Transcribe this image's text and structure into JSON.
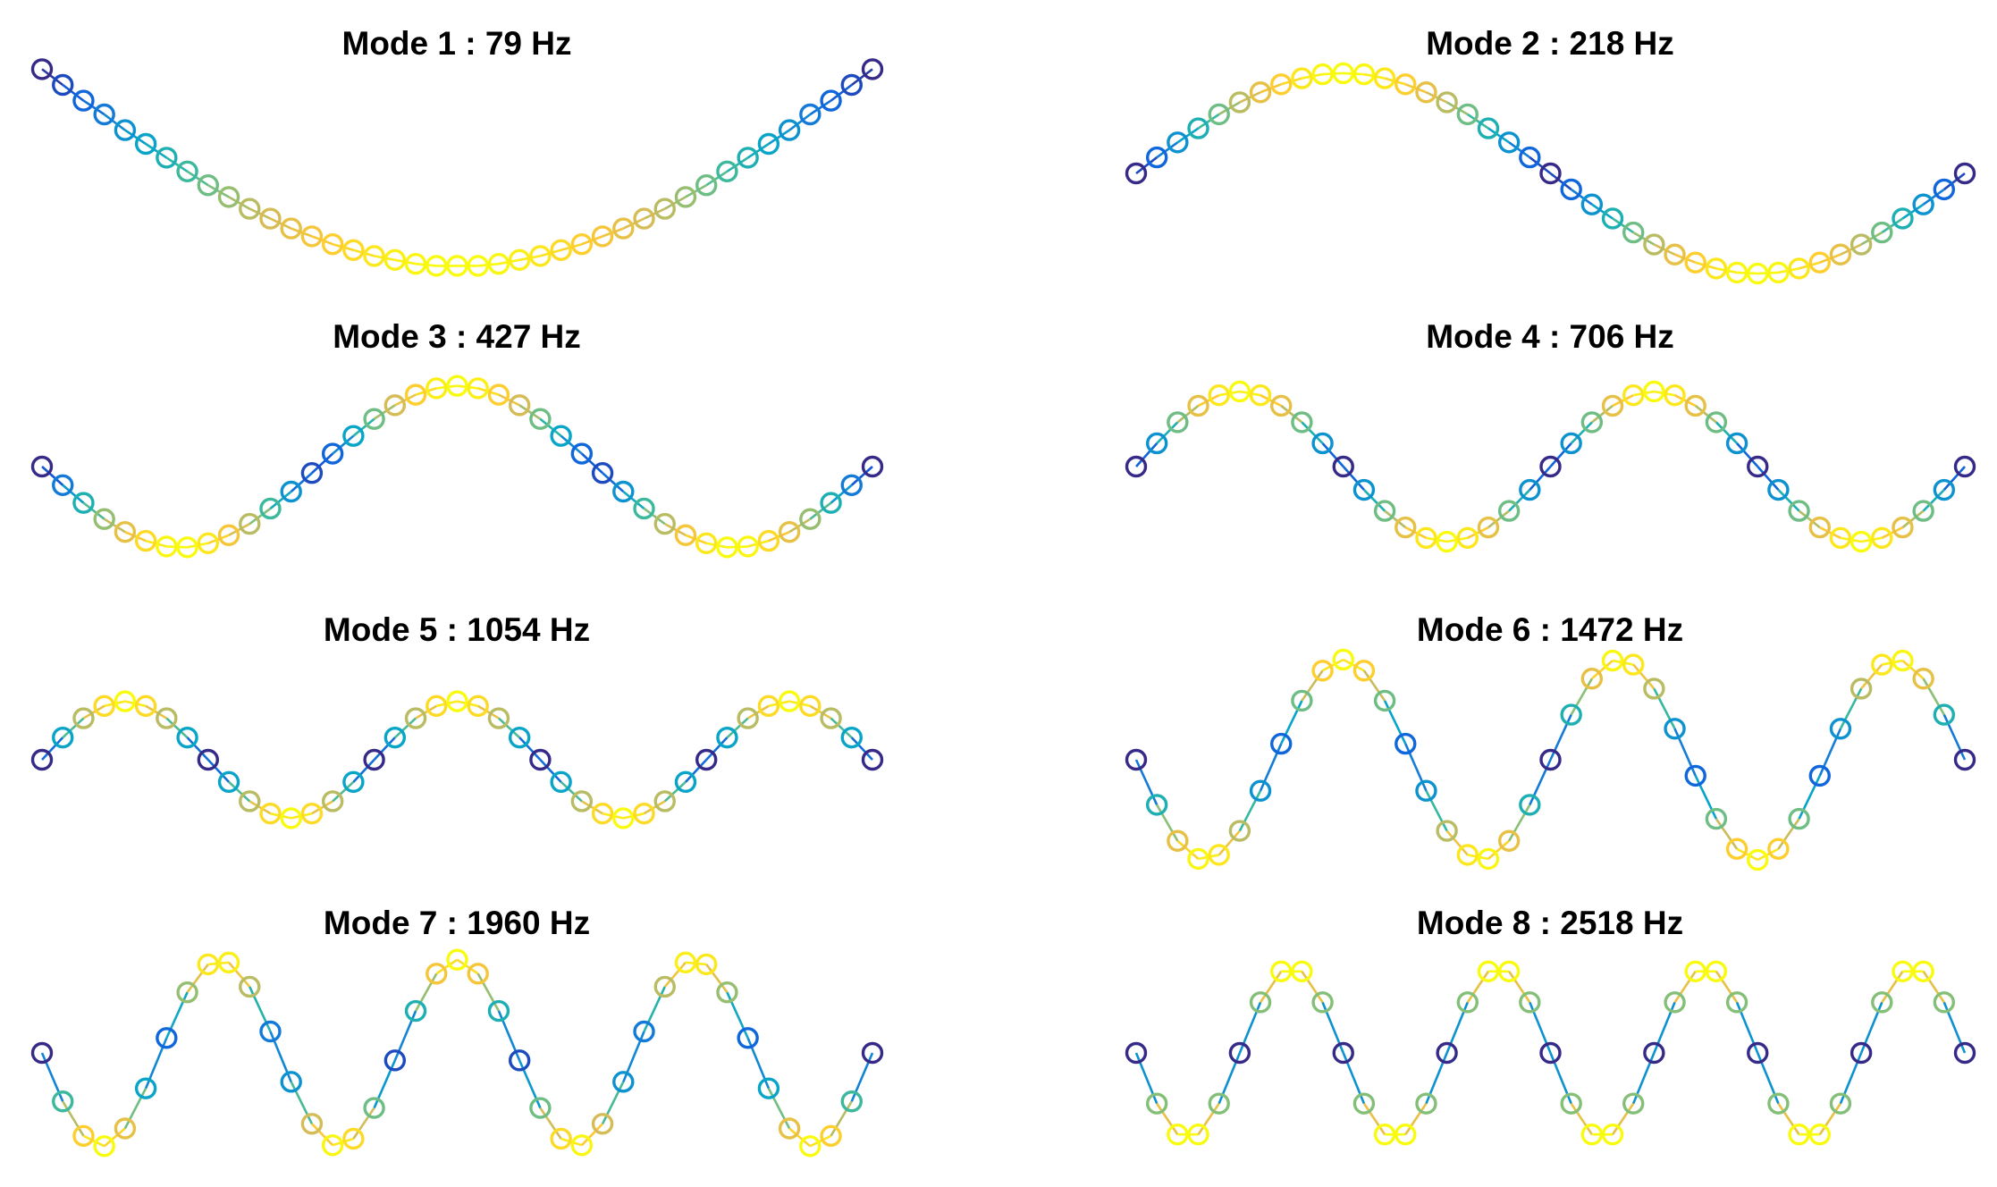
{
  "chart_data": [
    {
      "type": "line",
      "title": "Mode 1 : 79 Hz",
      "ylim": [
        -1.08,
        0.02
      ],
      "colormap": [
        "#352a87",
        "#0f5cdd",
        "#1481d6",
        "#06a4ca",
        "#2eb7a4",
        "#87bf77",
        "#d1bb59",
        "#fec832",
        "#f9fb0e"
      ],
      "values": [
        0,
        -0.08,
        -0.16,
        -0.23,
        -0.31,
        -0.38,
        -0.45,
        -0.52,
        -0.59,
        -0.65,
        -0.71,
        -0.76,
        -0.81,
        -0.85,
        -0.89,
        -0.92,
        -0.95,
        -0.97,
        -0.99,
        -1,
        -1,
        -1,
        -0.99,
        -0.97,
        -0.95,
        -0.92,
        -0.89,
        -0.85,
        -0.81,
        -0.76,
        -0.71,
        -0.65,
        -0.59,
        -0.52,
        -0.45,
        -0.38,
        -0.31,
        -0.23,
        -0.16,
        -0.08,
        0
      ]
    },
    {
      "type": "line",
      "title": "Mode 2 : 218 Hz",
      "ylim": [
        -1.08,
        1.08
      ],
      "colormap": [
        "#352a87",
        "#0f5cdd",
        "#1481d6",
        "#06a4ca",
        "#2eb7a4",
        "#87bf77",
        "#d1bb59",
        "#fec832",
        "#f9fb0e"
      ],
      "values": [
        0,
        0.16,
        0.31,
        0.45,
        0.59,
        0.71,
        0.81,
        0.89,
        0.95,
        0.99,
        1,
        0.99,
        0.95,
        0.89,
        0.81,
        0.71,
        0.59,
        0.45,
        0.31,
        0.16,
        0,
        -0.16,
        -0.31,
        -0.45,
        -0.59,
        -0.71,
        -0.81,
        -0.89,
        -0.95,
        -0.99,
        -1,
        -0.99,
        -0.95,
        -0.89,
        -0.81,
        -0.71,
        -0.59,
        -0.45,
        -0.31,
        -0.16,
        0
      ]
    },
    {
      "type": "line",
      "title": "Mode 3 : 427 Hz",
      "ylim": [
        -1.34,
        1.34
      ],
      "colormap": [
        "#352a87",
        "#0f5cdd",
        "#1481d6",
        "#06a4ca",
        "#2eb7a4",
        "#87bf77",
        "#d1bb59",
        "#fec832",
        "#f9fb0e"
      ],
      "values": [
        0,
        -0.23,
        -0.45,
        -0.65,
        -0.81,
        -0.92,
        -0.99,
        -1,
        -0.95,
        -0.85,
        -0.71,
        -0.52,
        -0.31,
        -0.08,
        0.16,
        0.38,
        0.59,
        0.76,
        0.89,
        0.97,
        1,
        0.97,
        0.89,
        0.76,
        0.59,
        0.38,
        0.16,
        -0.08,
        -0.31,
        -0.52,
        -0.71,
        -0.85,
        -0.95,
        -1,
        -0.99,
        -0.92,
        -0.81,
        -0.65,
        -0.45,
        -0.23,
        0
      ]
    },
    {
      "type": "line",
      "title": "Mode 4 : 706 Hz",
      "ylim": [
        -1.44,
        1.44
      ],
      "colormap": [
        "#352a87",
        "#0f5cdd",
        "#1481d6",
        "#06a4ca",
        "#2eb7a4",
        "#87bf77",
        "#d1bb59",
        "#fec832",
        "#f9fb0e"
      ],
      "values": [
        0,
        0.31,
        0.59,
        0.81,
        0.95,
        1,
        0.95,
        0.81,
        0.59,
        0.31,
        0,
        -0.31,
        -0.59,
        -0.81,
        -0.95,
        -1,
        -0.95,
        -0.81,
        -0.59,
        -0.31,
        0,
        0.31,
        0.59,
        0.81,
        0.95,
        1,
        0.95,
        0.81,
        0.59,
        0.31,
        0,
        -0.31,
        -0.59,
        -0.81,
        -0.95,
        -1,
        -0.95,
        -0.81,
        -0.59,
        -0.31,
        0
      ]
    },
    {
      "type": "line",
      "title": "Mode 5 : 1054 Hz",
      "ylim": [
        -1.85,
        1.85
      ],
      "colormap": [
        "#352a87",
        "#0f5cdd",
        "#1481d6",
        "#06a4ca",
        "#2eb7a4",
        "#87bf77",
        "#d1bb59",
        "#fec832",
        "#f9fb0e"
      ],
      "values": [
        0,
        0.38,
        0.71,
        0.92,
        1,
        0.92,
        0.71,
        0.38,
        0,
        -0.38,
        -0.71,
        -0.92,
        -1,
        -0.92,
        -0.71,
        -0.38,
        0,
        0.38,
        0.71,
        0.92,
        1,
        0.92,
        0.71,
        0.38,
        0,
        -0.38,
        -0.71,
        -0.92,
        -1,
        -0.92,
        -0.71,
        -0.38,
        0,
        0.38,
        0.71,
        0.92,
        1,
        0.92,
        0.71,
        0.38,
        0
      ]
    },
    {
      "type": "line",
      "title": "Mode 6 : 1472 Hz",
      "ylim": [
        -1.08,
        1.08
      ],
      "colormap": [
        "#352a87",
        "#0f5cdd",
        "#1481d6",
        "#06a4ca",
        "#2eb7a4",
        "#87bf77",
        "#d1bb59",
        "#fec832",
        "#f9fb0e"
      ],
      "values": [
        0,
        -0.45,
        -0.81,
        -0.99,
        -0.95,
        -0.71,
        -0.31,
        0.16,
        0.59,
        0.89,
        1,
        0.89,
        0.59,
        0.16,
        -0.31,
        -0.71,
        -0.95,
        -0.99,
        -0.81,
        -0.45,
        0,
        0.45,
        0.81,
        0.99,
        0.95,
        0.71,
        0.31,
        -0.16,
        -0.59,
        -0.89,
        -1,
        -0.89,
        -0.59,
        -0.16,
        0.31,
        0.71,
        0.95,
        0.99,
        0.81,
        0.45,
        0
      ]
    },
    {
      "type": "line",
      "title": "Mode 7 : 1960 Hz",
      "ylim": [
        -1.16,
        1.16
      ],
      "colormap": [
        "#352a87",
        "#0f5cdd",
        "#1481d6",
        "#06a4ca",
        "#2eb7a4",
        "#87bf77",
        "#d1bb59",
        "#fec832",
        "#f9fb0e"
      ],
      "values": [
        0,
        -0.52,
        -0.89,
        -1,
        -0.81,
        -0.38,
        0.16,
        0.65,
        0.95,
        0.97,
        0.71,
        0.23,
        -0.31,
        -0.76,
        -0.99,
        -0.92,
        -0.59,
        -0.08,
        0.45,
        0.85,
        1,
        0.85,
        0.45,
        -0.08,
        -0.59,
        -0.92,
        -0.99,
        -0.76,
        -0.31,
        0.23,
        0.71,
        0.97,
        0.95,
        0.65,
        0.16,
        -0.38,
        -0.81,
        -1,
        -0.89,
        -0.52,
        0
      ]
    },
    {
      "type": "line",
      "title": "Mode 8 : 2518 Hz",
      "ylim": [
        -1.26,
        1.26
      ],
      "colormap": [
        "#352a87",
        "#0f5cdd",
        "#1481d6",
        "#06a4ca",
        "#2eb7a4",
        "#87bf77",
        "#d1bb59",
        "#fec832",
        "#f9fb0e"
      ],
      "values": [
        0,
        -0.59,
        -0.95,
        -0.95,
        -0.59,
        0,
        0.59,
        0.95,
        0.95,
        0.59,
        0,
        -0.59,
        -0.95,
        -0.95,
        -0.59,
        0,
        0.59,
        0.95,
        0.95,
        0.59,
        0,
        -0.59,
        -0.95,
        -0.95,
        -0.59,
        0,
        0.59,
        0.95,
        0.95,
        0.59,
        0,
        -0.59,
        -0.95,
        -0.95,
        -0.59,
        0,
        0.59,
        0.95,
        0.95,
        0.59,
        0
      ]
    }
  ]
}
